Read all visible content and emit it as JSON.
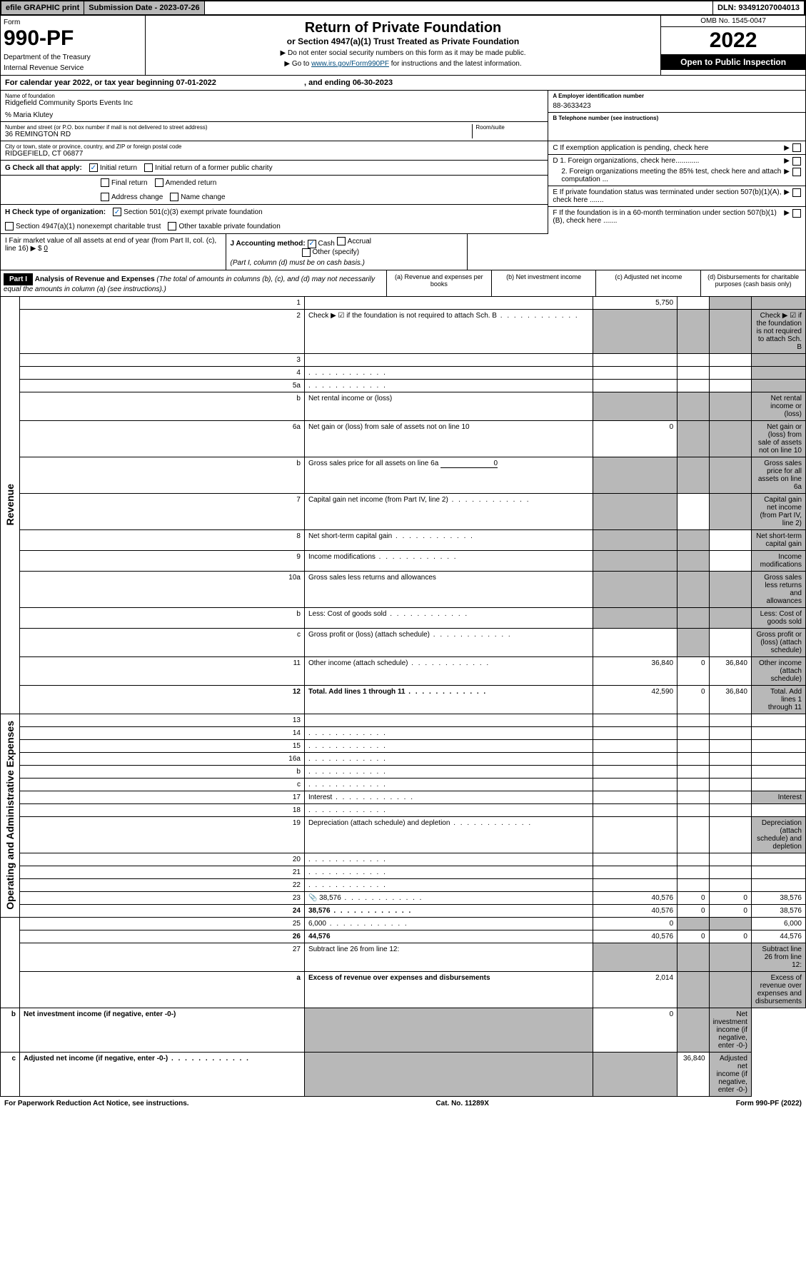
{
  "topbar": {
    "efile": "efile GRAPHIC print",
    "submission": "Submission Date - 2023-07-26",
    "dln": "DLN: 93491207004013"
  },
  "header": {
    "form_label": "Form",
    "form_num": "990-PF",
    "dept": "Department of the Treasury",
    "irs": "Internal Revenue Service",
    "title": "Return of Private Foundation",
    "subtitle": "or Section 4947(a)(1) Trust Treated as Private Foundation",
    "note1": "▶ Do not enter social security numbers on this form as it may be made public.",
    "note2_pre": "▶ Go to ",
    "note2_link": "www.irs.gov/Form990PF",
    "note2_post": " for instructions and the latest information.",
    "omb": "OMB No. 1545-0047",
    "year": "2022",
    "open": "Open to Public Inspection"
  },
  "cal_year": {
    "text": "For calendar year 2022, or tax year beginning 07-01-2022",
    "ending": ", and ending 06-30-2023"
  },
  "info": {
    "name_lbl": "Name of foundation",
    "name": "Ridgefield Community Sports Events Inc",
    "care_of": "% Maria Klutey",
    "addr_lbl": "Number and street (or P.O. box number if mail is not delivered to street address)",
    "addr": "36 REMINGTON RD",
    "room_lbl": "Room/suite",
    "city_lbl": "City or town, state or province, country, and ZIP or foreign postal code",
    "city": "RIDGEFIELD, CT  06877",
    "ein_lbl": "A Employer identification number",
    "ein": "88-3633423",
    "tel_lbl": "B Telephone number (see instructions)",
    "c_lbl": "C If exemption application is pending, check here",
    "d1": "D 1. Foreign organizations, check here............",
    "d2": "2. Foreign organizations meeting the 85% test, check here and attach computation ...",
    "e_lbl": "E  If private foundation status was terminated under section 507(b)(1)(A), check here .......",
    "f_lbl": "F  If the foundation is in a 60-month termination under section 507(b)(1)(B), check here ......."
  },
  "g": {
    "label": "G Check all that apply:",
    "initial": "Initial return",
    "initial_former": "Initial return of a former public charity",
    "final": "Final return",
    "amended": "Amended return",
    "addr_change": "Address change",
    "name_change": "Name change"
  },
  "h": {
    "label": "H Check type of organization:",
    "501c3": "Section 501(c)(3) exempt private foundation",
    "4947": "Section 4947(a)(1) nonexempt charitable trust",
    "other_tax": "Other taxable private foundation"
  },
  "i": {
    "label": "I Fair market value of all assets at end of year (from Part II, col. (c), line 16) ▶ $",
    "value": "0"
  },
  "j": {
    "label": "J Accounting method:",
    "cash": "Cash",
    "accrual": "Accrual",
    "other": "Other (specify)",
    "note": "(Part I, column (d) must be on cash basis.)"
  },
  "part1": {
    "label": "Part I",
    "title": "Analysis of Revenue and Expenses",
    "desc": "(The total of amounts in columns (b), (c), and (d) may not necessarily equal the amounts in column (a) (see instructions).)",
    "col_a": "(a)  Revenue and expenses per books",
    "col_b": "(b)  Net investment income",
    "col_c": "(c)  Adjusted net income",
    "col_d": "(d)  Disbursements for charitable purposes (cash basis only)"
  },
  "sections": {
    "revenue": "Revenue",
    "expenses": "Operating and Administrative Expenses"
  },
  "rows": [
    {
      "n": "1",
      "d": "",
      "a": "5,750",
      "b": "",
      "c": "",
      "sh": [
        "c",
        "d"
      ]
    },
    {
      "n": "2",
      "d": "Check ▶ ☑ if the foundation is not required to attach Sch. B",
      "dots": true,
      "a": "",
      "sh": [
        "a",
        "b",
        "c",
        "d"
      ]
    },
    {
      "n": "3",
      "d": "",
      "a": "",
      "b": "",
      "c": "",
      "sh": [
        "d"
      ]
    },
    {
      "n": "4",
      "d": "",
      "dots": true,
      "a": "",
      "b": "",
      "c": "",
      "sh": [
        "d"
      ]
    },
    {
      "n": "5a",
      "d": "",
      "dots": true,
      "a": "",
      "b": "",
      "c": "",
      "sh": [
        "d"
      ]
    },
    {
      "n": "b",
      "d": "Net rental income or (loss)",
      "a": "",
      "sh": [
        "a",
        "b",
        "c",
        "d"
      ]
    },
    {
      "n": "6a",
      "d": "Net gain or (loss) from sale of assets not on line 10",
      "a": "0",
      "sh": [
        "b",
        "c",
        "d"
      ]
    },
    {
      "n": "b",
      "d": "Gross sales price for all assets on line 6a",
      "inline": "0",
      "sh": [
        "a",
        "b",
        "c",
        "d"
      ]
    },
    {
      "n": "7",
      "d": "Capital gain net income (from Part IV, line 2)",
      "dots": true,
      "b": "",
      "sh": [
        "a",
        "c",
        "d"
      ]
    },
    {
      "n": "8",
      "d": "Net short-term capital gain",
      "dots": true,
      "c": "",
      "sh": [
        "a",
        "b",
        "d"
      ]
    },
    {
      "n": "9",
      "d": "Income modifications",
      "dots": true,
      "c": "",
      "sh": [
        "a",
        "b",
        "d"
      ]
    },
    {
      "n": "10a",
      "d": "Gross sales less returns and allowances",
      "sh": [
        "a",
        "b",
        "c",
        "d"
      ]
    },
    {
      "n": "b",
      "d": "Less: Cost of goods sold",
      "dots": true,
      "sh": [
        "a",
        "b",
        "c",
        "d"
      ]
    },
    {
      "n": "c",
      "d": "Gross profit or (loss) (attach schedule)",
      "dots": true,
      "a": "",
      "c": "",
      "sh": [
        "b",
        "d"
      ]
    },
    {
      "n": "11",
      "d": "Other income (attach schedule)",
      "dots": true,
      "a": "36,840",
      "b": "0",
      "c": "36,840",
      "sh": [
        "d"
      ]
    },
    {
      "n": "12",
      "d": "Total. Add lines 1 through 11",
      "dots": true,
      "bold": true,
      "a": "42,590",
      "b": "0",
      "c": "36,840",
      "sh": [
        "d"
      ]
    },
    {
      "n": "13",
      "d": "",
      "a": "",
      "b": "",
      "c": ""
    },
    {
      "n": "14",
      "d": "",
      "dots": true,
      "a": "",
      "b": "",
      "c": ""
    },
    {
      "n": "15",
      "d": "",
      "dots": true,
      "a": "",
      "b": "",
      "c": ""
    },
    {
      "n": "16a",
      "d": "",
      "dots": true,
      "a": "",
      "b": "",
      "c": ""
    },
    {
      "n": "b",
      "d": "",
      "dots": true,
      "a": "",
      "b": "",
      "c": ""
    },
    {
      "n": "c",
      "d": "",
      "dots": true,
      "a": "",
      "b": "",
      "c": ""
    },
    {
      "n": "17",
      "d": "Interest",
      "dots": true,
      "a": "",
      "b": "",
      "c": "",
      "sh": [
        "d"
      ]
    },
    {
      "n": "18",
      "d": "",
      "dots": true,
      "a": "",
      "b": "",
      "c": ""
    },
    {
      "n": "19",
      "d": "Depreciation (attach schedule) and depletion",
      "dots": true,
      "a": "",
      "b": "",
      "c": "",
      "sh": [
        "d"
      ]
    },
    {
      "n": "20",
      "d": "",
      "dots": true,
      "a": "",
      "b": "",
      "c": ""
    },
    {
      "n": "21",
      "d": "",
      "dots": true,
      "a": "",
      "b": "",
      "c": ""
    },
    {
      "n": "22",
      "d": "",
      "dots": true,
      "a": "",
      "b": "",
      "c": ""
    },
    {
      "n": "23",
      "d": "38,576",
      "dots": true,
      "icon": "📎",
      "a": "40,576",
      "b": "0",
      "c": "0"
    },
    {
      "n": "24",
      "d": "38,576",
      "dots": true,
      "bold": true,
      "a": "40,576",
      "b": "0",
      "c": "0"
    },
    {
      "n": "25",
      "d": "6,000",
      "dots": true,
      "a": "0",
      "sh": [
        "b",
        "c"
      ]
    },
    {
      "n": "26",
      "d": "44,576",
      "bold": true,
      "a": "40,576",
      "b": "0",
      "c": "0"
    },
    {
      "n": "27",
      "d": "Subtract line 26 from line 12:",
      "sh": [
        "a",
        "b",
        "c",
        "d"
      ]
    },
    {
      "n": "a",
      "d": "Excess of revenue over expenses and disbursements",
      "bold": true,
      "a": "2,014",
      "sh": [
        "b",
        "c",
        "d"
      ]
    },
    {
      "n": "b",
      "d": "Net investment income (if negative, enter -0-)",
      "bold": true,
      "b": "0",
      "sh": [
        "a",
        "c",
        "d"
      ]
    },
    {
      "n": "c",
      "d": "Adjusted net income (if negative, enter -0-)",
      "dots": true,
      "bold": true,
      "c": "36,840",
      "sh": [
        "a",
        "b",
        "d"
      ]
    }
  ],
  "footer": {
    "left": "For Paperwork Reduction Act Notice, see instructions.",
    "center": "Cat. No. 11289X",
    "right": "Form 990-PF (2022)"
  }
}
